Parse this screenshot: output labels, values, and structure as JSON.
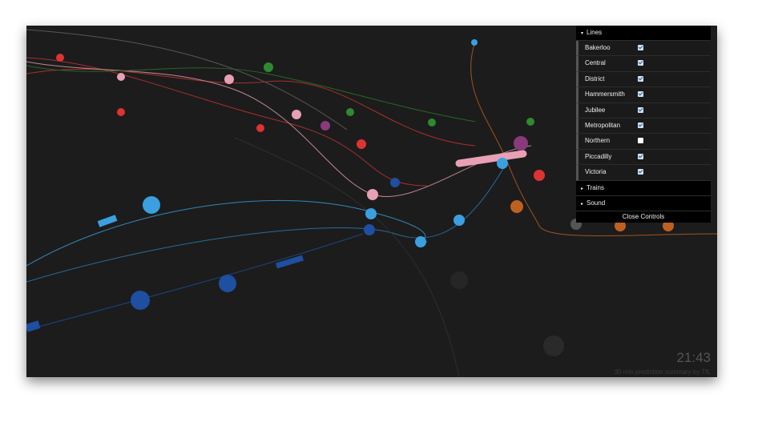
{
  "controls": {
    "folders": [
      {
        "title": "Lines",
        "open": true,
        "items": [
          {
            "name": "Bakerloo",
            "checked": true
          },
          {
            "name": "Central",
            "checked": true
          },
          {
            "name": "District",
            "checked": true
          },
          {
            "name": "Hammersmith",
            "checked": true
          },
          {
            "name": "Jubilee",
            "checked": true
          },
          {
            "name": "Metropolitan",
            "checked": true
          },
          {
            "name": "Northern",
            "checked": false
          },
          {
            "name": "Piccadilly",
            "checked": true
          },
          {
            "name": "Victoria",
            "checked": true
          }
        ]
      },
      {
        "title": "Trains",
        "open": false
      },
      {
        "title": "Sound",
        "open": false
      }
    ],
    "close": "Close Controls"
  },
  "clock": "21:43",
  "credit": "30 min prediction summary by TfL"
}
